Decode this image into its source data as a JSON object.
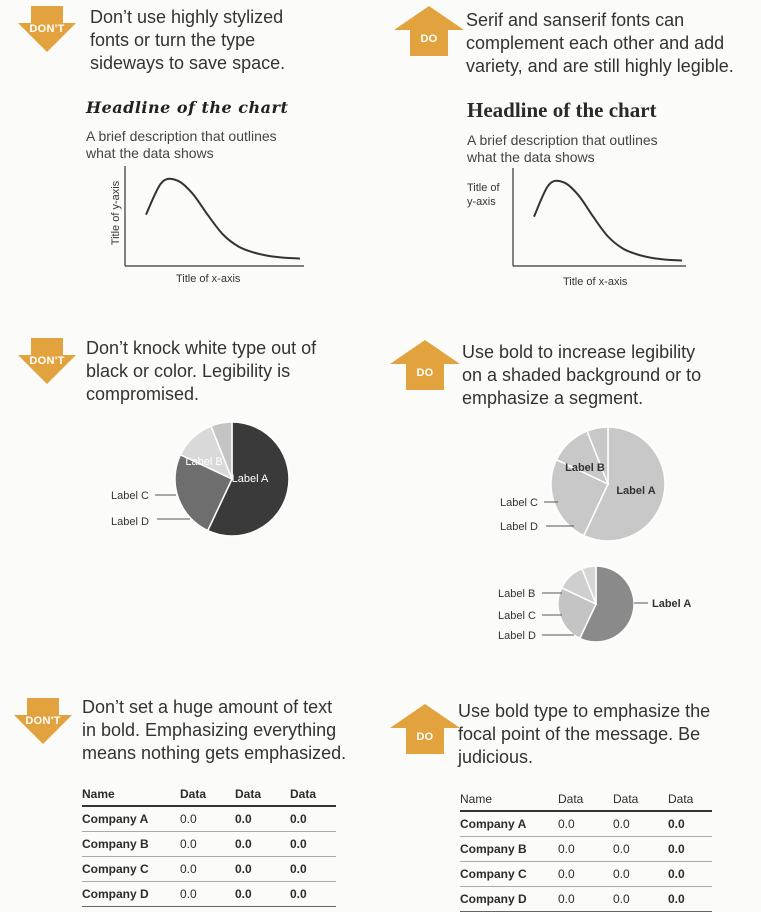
{
  "badge_colors": {
    "fill": "#e2a23e"
  },
  "badges": {
    "dont": "DON'T",
    "do": "DO"
  },
  "tips": {
    "t1": [
      "Don’t use highly stylized",
      "fonts or turn the type",
      "sideways to save space."
    ],
    "t2": [
      "Serif and sanserif fonts can",
      "complement each other and add",
      "variety, and are still highly legible."
    ],
    "t3": [
      "Don’t knock white type out of",
      "black or color. Legibility is",
      "compromised."
    ],
    "t4": [
      "Use bold to increase legibility",
      "on a shaded background or to",
      "emphasize a segment."
    ],
    "t5": [
      "Don’t set a huge amount of text",
      "in bold. Emphasizing everything",
      "means nothing gets emphasized."
    ],
    "t6": [
      "Use bold type to emphasize the",
      "focal point of the message. Be",
      "judicious."
    ]
  },
  "chart_examples": {
    "headline": "Headline of the chart",
    "description": [
      "A brief description that outlines",
      "what the data shows"
    ],
    "y_axis_title": "Title of y-axis",
    "y_axis_title_lines": [
      "Title of",
      "y-axis"
    ],
    "x_axis_title": "Title of x-axis"
  },
  "pie_labels": {
    "a": "Label A",
    "b": "Label B",
    "c": "Label C",
    "d": "Label D"
  },
  "chart_data": [
    {
      "type": "line",
      "title": "Headline of the chart",
      "xlabel": "Title of x-axis",
      "ylabel": "Title of y-axis",
      "x": [
        0,
        1,
        2,
        3,
        4,
        5,
        6,
        7,
        8,
        9,
        10
      ],
      "y": [
        0.55,
        0.92,
        0.95,
        0.8,
        0.55,
        0.32,
        0.18,
        0.11,
        0.07,
        0.05,
        0.04
      ]
    },
    {
      "type": "pie",
      "categories": [
        "Label A",
        "Label B",
        "Label C",
        "Label D"
      ],
      "values": [
        57,
        25,
        12,
        6
      ]
    }
  ],
  "tables": {
    "headers": [
      "Name",
      "Data",
      "Data",
      "Data"
    ],
    "rows": [
      [
        "Company A",
        "0.0",
        "0.0",
        "0.0"
      ],
      [
        "Company B",
        "0.0",
        "0.0",
        "0.0"
      ],
      [
        "Company C",
        "0.0",
        "0.0",
        "0.0"
      ],
      [
        "Company D",
        "0.0",
        "0.0",
        "0.0"
      ]
    ]
  }
}
